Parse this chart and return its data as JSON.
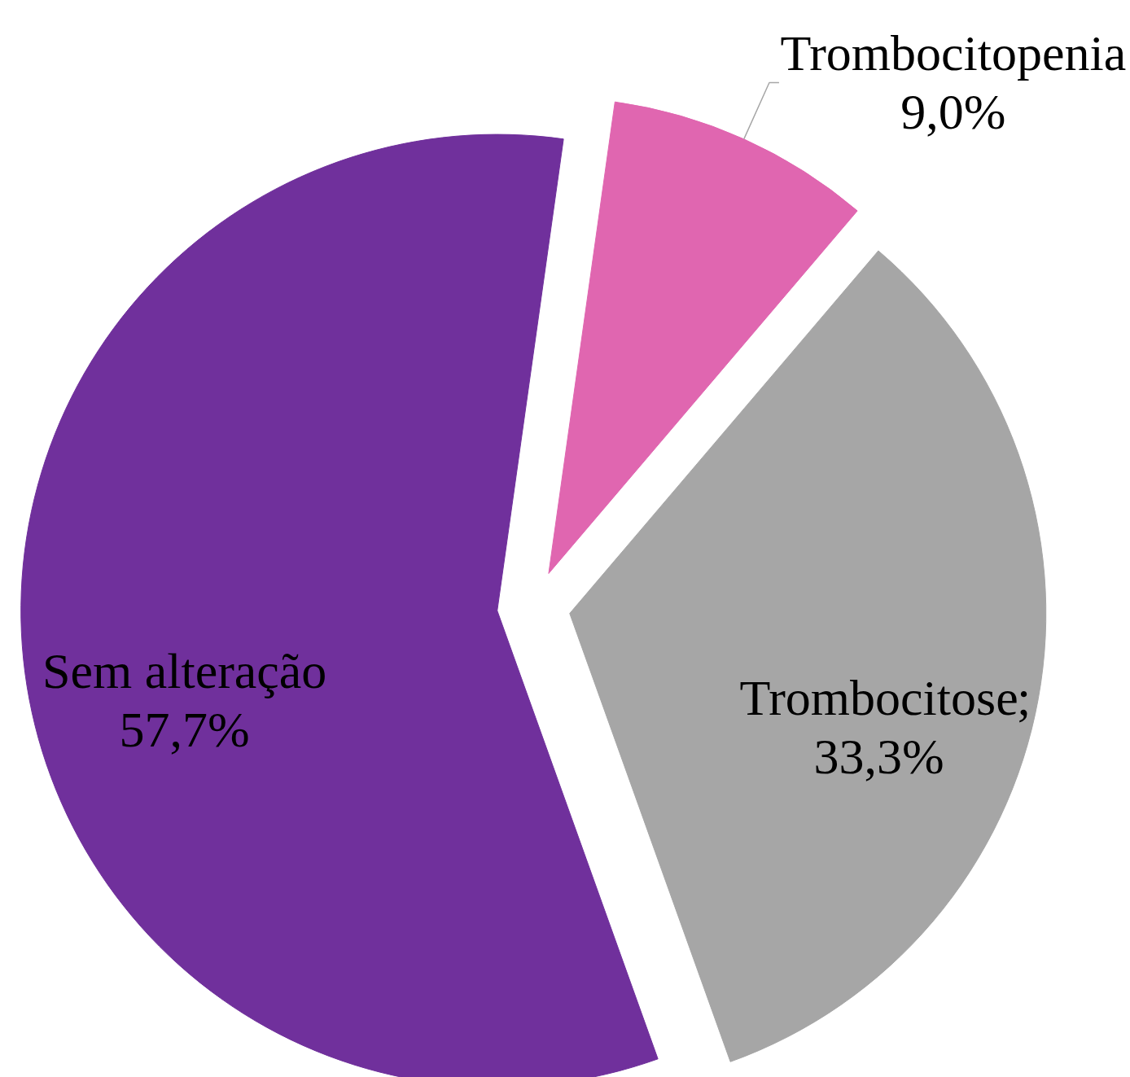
{
  "chart_data": {
    "type": "pie",
    "categories": [
      "Trombocitopenia",
      "Trombocitose",
      "Sem alteração"
    ],
    "values": [
      9.0,
      33.3,
      57.7
    ],
    "colors": [
      "#e066b0",
      "#a6a6a6",
      "#70309c"
    ],
    "value_labels": [
      "9,0%",
      "33,3%",
      "57,7%"
    ],
    "annotations": [
      ";"
    ]
  }
}
